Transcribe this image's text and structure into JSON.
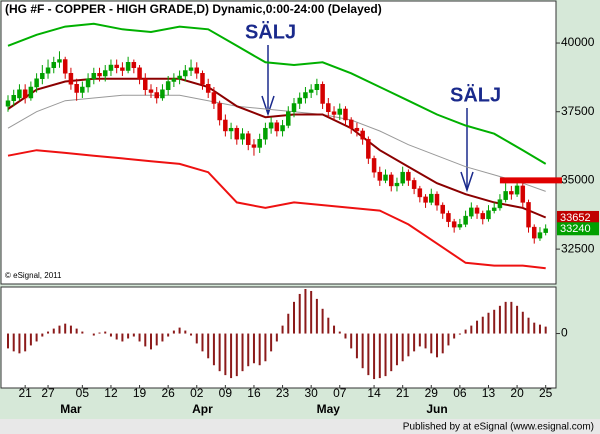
{
  "chart_data": [
    {
      "type": "candlestick",
      "title": "(HG #F - COPPER - HIGH GRADE,D) Dynamic,0:00-24:00 (Delayed)",
      "copyright": "© eSignal, 2011",
      "categories": [
        null,
        null,
        null,
        "21",
        null,
        null,
        null,
        "27",
        null,
        null,
        null,
        null,
        null,
        "05",
        null,
        null,
        null,
        null,
        "12",
        null,
        null,
        null,
        null,
        "19",
        null,
        null,
        null,
        null,
        "26",
        null,
        null,
        null,
        null,
        "02",
        null,
        null,
        null,
        null,
        "09",
        null,
        null,
        null,
        null,
        "16",
        null,
        null,
        null,
        null,
        "23",
        null,
        null,
        null,
        null,
        "30",
        null,
        null,
        null,
        null,
        "07",
        null,
        null,
        null,
        null,
        null,
        "14",
        null,
        null,
        null,
        null,
        "21",
        null,
        null,
        null,
        null,
        "29",
        null,
        null,
        null,
        null,
        "06",
        null,
        null,
        null,
        null,
        "13",
        null,
        null,
        null,
        null,
        "20",
        null,
        null,
        null,
        null,
        "25"
      ],
      "month_labels": [
        null,
        null,
        null,
        null,
        null,
        null,
        null,
        null,
        null,
        null,
        null,
        "Mar",
        null,
        null,
        null,
        null,
        null,
        null,
        null,
        null,
        null,
        null,
        null,
        null,
        null,
        null,
        null,
        null,
        null,
        null,
        null,
        null,
        null,
        null,
        "Apr",
        null,
        null,
        null,
        null,
        null,
        null,
        null,
        null,
        null,
        null,
        null,
        null,
        null,
        null,
        null,
        null,
        null,
        null,
        null,
        null,
        null,
        "May",
        null,
        null,
        null,
        null,
        null,
        null,
        null,
        null,
        null,
        null,
        null,
        null,
        null,
        null,
        null,
        null,
        null,
        null,
        "Jun",
        null,
        null,
        null,
        null,
        null,
        null,
        null,
        null,
        null,
        null,
        null,
        null,
        null,
        null,
        null
      ],
      "ohlc": [
        [
          37700,
          38100,
          37500,
          37900
        ],
        [
          37900,
          38300,
          37700,
          38100
        ],
        [
          38000,
          38500,
          37900,
          38300
        ],
        [
          38300,
          38500,
          37800,
          38000
        ],
        [
          38000,
          38600,
          37900,
          38400
        ],
        [
          38400,
          38900,
          38200,
          38700
        ],
        [
          38700,
          39200,
          38500,
          38900
        ],
        [
          38900,
          39400,
          38700,
          39100
        ],
        [
          39100,
          39500,
          38900,
          39300
        ],
        [
          39300,
          39700,
          39100,
          39400
        ],
        [
          39400,
          39500,
          38700,
          38900
        ],
        [
          38900,
          39100,
          38300,
          38500
        ],
        [
          38500,
          38700,
          37900,
          38200
        ],
        [
          38200,
          38600,
          38000,
          38400
        ],
        [
          38400,
          38900,
          38200,
          38700
        ],
        [
          38700,
          39100,
          38500,
          38900
        ],
        [
          38900,
          39100,
          38600,
          38800
        ],
        [
          38800,
          39200,
          38600,
          39000
        ],
        [
          39000,
          39400,
          38800,
          39200
        ],
        [
          39200,
          39400,
          38900,
          39100
        ],
        [
          39100,
          39300,
          38800,
          39000
        ],
        [
          39000,
          39500,
          38900,
          39300
        ],
        [
          39300,
          39400,
          38900,
          39100
        ],
        [
          39100,
          39200,
          38500,
          38700
        ],
        [
          38700,
          38900,
          38100,
          38300
        ],
        [
          38300,
          38500,
          38000,
          38200
        ],
        [
          38200,
          38400,
          37800,
          38000
        ],
        [
          38000,
          38500,
          37900,
          38300
        ],
        [
          38300,
          38800,
          38100,
          38600
        ],
        [
          38600,
          38900,
          38400,
          38700
        ],
        [
          38700,
          39000,
          38500,
          38800
        ],
        [
          38800,
          39200,
          38600,
          39000
        ],
        [
          39000,
          39400,
          38800,
          39100
        ],
        [
          39100,
          39300,
          38700,
          38900
        ],
        [
          38900,
          39000,
          38300,
          38500
        ],
        [
          38500,
          38700,
          38000,
          38200
        ],
        [
          38200,
          38400,
          37600,
          37800
        ],
        [
          37800,
          37900,
          37000,
          37200
        ],
        [
          37200,
          37400,
          36600,
          36800
        ],
        [
          36800,
          37100,
          36500,
          36900
        ],
        [
          36900,
          37000,
          36300,
          36500
        ],
        [
          36500,
          36900,
          36300,
          36700
        ],
        [
          36700,
          36800,
          36100,
          36300
        ],
        [
          36300,
          36500,
          35900,
          36200
        ],
        [
          36200,
          36700,
          36000,
          36500
        ],
        [
          36500,
          37100,
          36300,
          36900
        ],
        [
          36900,
          37300,
          36700,
          37100
        ],
        [
          37100,
          37200,
          36600,
          36800
        ],
        [
          36800,
          37200,
          36600,
          37000
        ],
        [
          37000,
          37700,
          36900,
          37500
        ],
        [
          37500,
          38000,
          37300,
          37800
        ],
        [
          37800,
          38200,
          37600,
          38000
        ],
        [
          38000,
          38400,
          37800,
          38200
        ],
        [
          38200,
          38500,
          38000,
          38300
        ],
        [
          38300,
          38700,
          38100,
          38500
        ],
        [
          38500,
          38600,
          37600,
          37800
        ],
        [
          37800,
          38000,
          37300,
          37500
        ],
        [
          37500,
          37700,
          37200,
          37400
        ],
        [
          37400,
          37800,
          37200,
          37600
        ],
        [
          37600,
          37700,
          37000,
          37200
        ],
        [
          37200,
          37300,
          36700,
          36900
        ],
        [
          36900,
          37100,
          36600,
          36800
        ],
        [
          36800,
          36900,
          36300,
          36500
        ],
        [
          36500,
          36600,
          35600,
          35800
        ],
        [
          35800,
          35900,
          35100,
          35300
        ],
        [
          35300,
          35500,
          34800,
          35000
        ],
        [
          35000,
          35400,
          34900,
          35200
        ],
        [
          35200,
          35300,
          34600,
          34800
        ],
        [
          34800,
          35100,
          34600,
          34900
        ],
        [
          34900,
          35500,
          34800,
          35300
        ],
        [
          35300,
          35400,
          34800,
          35000
        ],
        [
          35000,
          35100,
          34500,
          34700
        ],
        [
          34700,
          34800,
          34200,
          34400
        ],
        [
          34400,
          34500,
          34000,
          34200
        ],
        [
          34200,
          34700,
          34100,
          34500
        ],
        [
          34500,
          34600,
          33900,
          34100
        ],
        [
          34100,
          34200,
          33600,
          33800
        ],
        [
          33800,
          33900,
          33300,
          33500
        ],
        [
          33500,
          33600,
          33100,
          33300
        ],
        [
          33300,
          33600,
          33200,
          33400
        ],
        [
          33400,
          33900,
          33300,
          33700
        ],
        [
          33700,
          34200,
          33600,
          34000
        ],
        [
          34000,
          34100,
          33600,
          33800
        ],
        [
          33800,
          33900,
          33400,
          33600
        ],
        [
          33600,
          34100,
          33500,
          33900
        ],
        [
          33900,
          34200,
          33800,
          34000
        ],
        [
          34000,
          34500,
          33900,
          34300
        ],
        [
          34300,
          34900,
          34200,
          34600
        ],
        [
          34600,
          34800,
          34300,
          34500
        ],
        [
          34500,
          35000,
          34400,
          34800
        ],
        [
          34800,
          34900,
          34000,
          34200
        ],
        [
          34200,
          34300,
          33100,
          33300
        ],
        [
          33300,
          33400,
          32700,
          32900
        ],
        [
          32900,
          33300,
          32800,
          33100
        ],
        [
          33100,
          33400,
          33000,
          33240
        ]
      ],
      "up_color": "#00a000",
      "down_color": "#d40000",
      "ylim": [
        31230,
        41530
      ],
      "yticks": [
        32500,
        35000,
        37500,
        40000
      ],
      "series": [
        {
          "color": "#00b000",
          "x": [
            0,
            5,
            10,
            15,
            20,
            25,
            30,
            35,
            40,
            45,
            50,
            55,
            60,
            65,
            70,
            75,
            80,
            85,
            90,
            94
          ],
          "values": [
            39900,
            40300,
            40600,
            40700,
            40500,
            40400,
            40600,
            40500,
            39900,
            39300,
            39200,
            39300,
            38900,
            38400,
            37900,
            37400,
            37000,
            36700,
            36100,
            35600
          ]
        },
        {
          "color": "#999999",
          "x": [
            0,
            5,
            10,
            15,
            20,
            25,
            30,
            35,
            40,
            45,
            50,
            55,
            60,
            65,
            70,
            75,
            80,
            85,
            90,
            94
          ],
          "values": [
            36900,
            37500,
            37900,
            38000,
            38100,
            38100,
            38100,
            37900,
            37700,
            37600,
            37500,
            37400,
            37200,
            36800,
            36300,
            35900,
            35500,
            35200,
            34900,
            34600
          ]
        },
        {
          "color": "#8b0000",
          "x": [
            0,
            5,
            10,
            15,
            20,
            25,
            30,
            35,
            40,
            45,
            50,
            55,
            60,
            65,
            70,
            75,
            80,
            85,
            90,
            94
          ],
          "values": [
            37600,
            38300,
            38600,
            38700,
            38700,
            38700,
            38700,
            38400,
            37700,
            37300,
            37400,
            37400,
            36900,
            36100,
            35500,
            34900,
            34500,
            34200,
            34000,
            33652
          ]
        },
        {
          "color": "#ee1111",
          "x": [
            0,
            5,
            10,
            15,
            20,
            25,
            30,
            35,
            40,
            45,
            50,
            55,
            60,
            65,
            70,
            75,
            80,
            85,
            90,
            94
          ],
          "values": [
            35900,
            36100,
            36000,
            35900,
            35800,
            35700,
            35600,
            35300,
            34200,
            34000,
            34200,
            34100,
            34000,
            33900,
            33400,
            32700,
            32000,
            31900,
            31900,
            31800
          ]
        }
      ],
      "level_line": {
        "value": 35000,
        "color": "#e00000"
      },
      "price_labels": [
        {
          "value": 33652,
          "color": "#c00000"
        },
        {
          "value": 33240,
          "color": "#00a000"
        }
      ],
      "annotations": [
        "SÄLJ",
        "SÄLJ"
      ]
    },
    {
      "type": "bar",
      "color": "#8b1a1a",
      "ylim": [
        -5.5,
        4.6
      ],
      "yticks": [
        0
      ],
      "values": [
        -1.5,
        -1.8,
        -2,
        -1.8,
        -1.2,
        -0.8,
        -0.3,
        0.2,
        0.5,
        0.8,
        1,
        0.8,
        0.5,
        0.2,
        0,
        -0.2,
        0.1,
        0.2,
        -0.3,
        -0.6,
        -0.8,
        -0.5,
        -0.3,
        -0.8,
        -1.3,
        -1.6,
        -1.2,
        -0.8,
        -0.3,
        0.3,
        0.6,
        0.3,
        -0.2,
        -1,
        -1.8,
        -2.5,
        -3.2,
        -3.8,
        -4.2,
        -4.5,
        -4.3,
        -3.8,
        -3.3,
        -3,
        -3.2,
        -2.8,
        -1.8,
        -0.8,
        0.8,
        2,
        3.2,
        4,
        4.5,
        4.3,
        3.5,
        2.5,
        1.6,
        0.8,
        0.2,
        -0.5,
        -1.5,
        -2.5,
        -3.5,
        -4.2,
        -4.6,
        -4.5,
        -4.3,
        -3.8,
        -3.2,
        -2.8,
        -2.3,
        -1.8,
        -1.3,
        -1.5,
        -2,
        -2.4,
        -2,
        -1.2,
        -0.5,
        -0.1,
        0.4,
        0.8,
        1.3,
        1.7,
        2.1,
        2.4,
        2.8,
        3.2,
        3.2,
        2.8,
        2.2,
        1.6,
        1.1,
        0.9,
        0.7
      ]
    }
  ],
  "footer": "Published by at eSignal (www.esignal.com)"
}
